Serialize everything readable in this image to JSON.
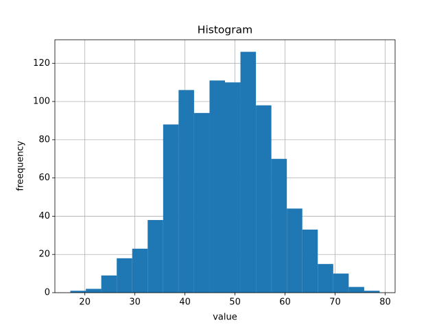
{
  "chart_data": {
    "type": "histogram",
    "title": "Histogram",
    "x_label": "value",
    "y_label": "freequency",
    "bins": [
      17.1,
      20.19,
      23.28,
      26.37,
      29.46,
      32.55,
      35.64,
      38.73,
      41.82,
      44.91,
      48.0,
      51.09,
      54.18,
      57.27,
      60.36,
      63.45,
      66.54,
      69.63,
      72.72,
      75.81,
      78.9
    ],
    "values": [
      1,
      2,
      9,
      18,
      23,
      38,
      88,
      106,
      94,
      111,
      110,
      126,
      98,
      70,
      44,
      33,
      15,
      10,
      3,
      1
    ],
    "color": "#1f77b4",
    "xlim": [
      14.01,
      81.99
    ],
    "xticks": [
      20,
      30,
      40,
      50,
      60,
      70,
      80
    ],
    "ylim": [
      0,
      132.3
    ],
    "yticks": [
      0,
      20,
      40,
      60,
      80,
      100,
      120
    ],
    "grid": true
  }
}
